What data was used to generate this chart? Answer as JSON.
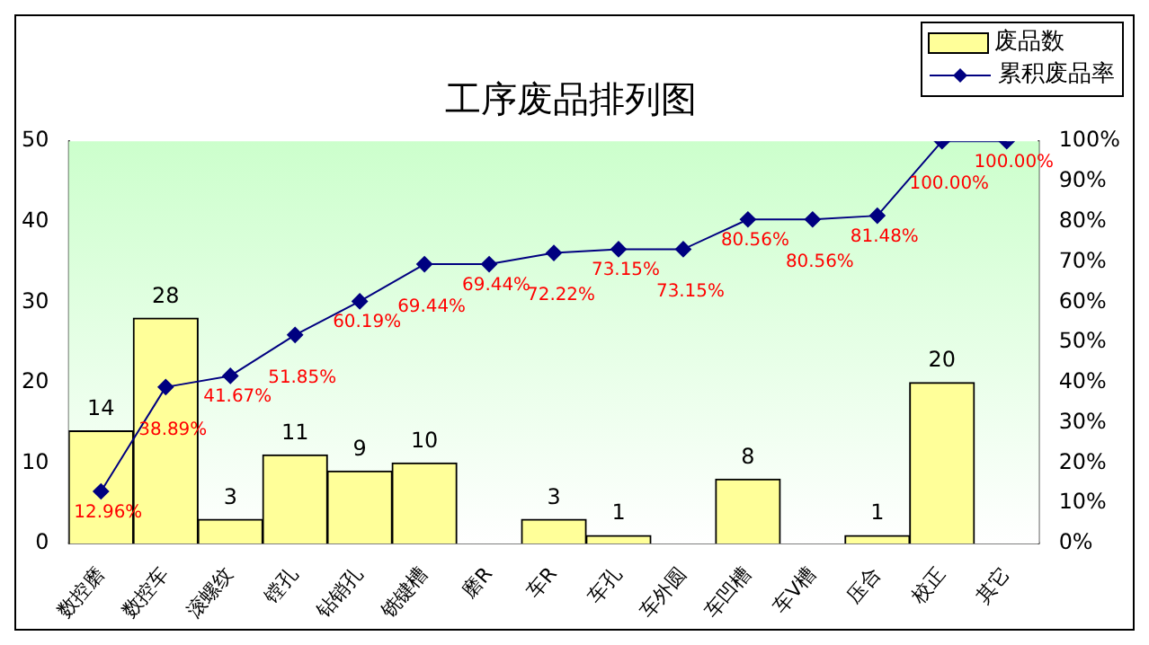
{
  "chart_data": {
    "type": "bar",
    "title": "工序废品排列图",
    "categories": [
      "数控磨",
      "数控车",
      "滚螺纹",
      "镗孔",
      "钻销孔",
      "铣键槽",
      "磨R",
      "车R",
      "车孔",
      "车外圆",
      "车凹槽",
      "车V槽",
      "压合",
      "校正",
      "其它"
    ],
    "series": [
      {
        "name": "废品数",
        "color": "#ffff99",
        "values": [
          14,
          28,
          3,
          11,
          9,
          10,
          0,
          3,
          1,
          0,
          8,
          0,
          1,
          20,
          0
        ],
        "value_labels": [
          "14",
          "28",
          "3",
          "11",
          "9",
          "10",
          null,
          "3",
          "1",
          null,
          "8",
          null,
          "1",
          "20",
          null
        ]
      },
      {
        "name": "累积废品率",
        "type": "line",
        "axis": "y2",
        "color": "#000080",
        "values": [
          12.96,
          38.89,
          41.67,
          51.85,
          60.19,
          69.44,
          69.44,
          72.22,
          73.15,
          73.15,
          80.56,
          80.56,
          81.48,
          100,
          100
        ],
        "value_labels": [
          "12.96%",
          "38.89%",
          "41.67%",
          "51.85%",
          "60.19%",
          "69.44%",
          "69.44%",
          "72.22%",
          "73.15%",
          "73.15%",
          "80.56%",
          "80.56%",
          "81.48%",
          "100.00%",
          "100.00%"
        ]
      }
    ],
    "ylim": [
      0,
      50
    ],
    "yticks": [
      0,
      10,
      20,
      30,
      40,
      50
    ],
    "y2lim": [
      0,
      100
    ],
    "y2ticks": [
      {
        "value": 0,
        "label": "0%"
      },
      {
        "value": 10,
        "label": "10%"
      },
      {
        "value": 20,
        "label": "20%"
      },
      {
        "value": 30,
        "label": "30%"
      },
      {
        "value": 40,
        "label": "40%"
      },
      {
        "value": 50,
        "label": "50%"
      },
      {
        "value": 60,
        "label": "60%"
      },
      {
        "value": 70,
        "label": "70%"
      },
      {
        "value": 80,
        "label": "80%"
      },
      {
        "value": 90,
        "label": "90%"
      },
      {
        "value": 100,
        "label": "100%"
      }
    ],
    "legend": "top right",
    "marker": "diamond"
  }
}
